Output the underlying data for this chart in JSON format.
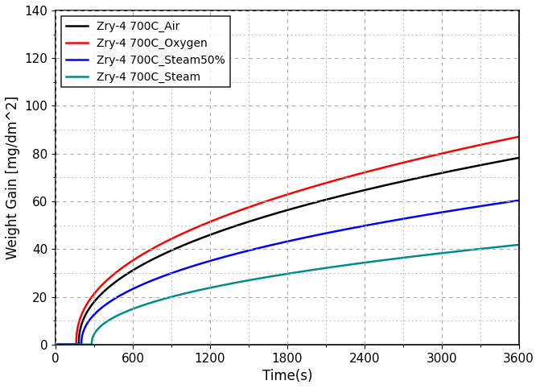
{
  "title": "",
  "xlabel": "Time(s)",
  "ylabel": "Weight Gain [mg/dm^2]",
  "xlim": [
    0,
    3600
  ],
  "ylim": [
    0,
    140
  ],
  "xticks": [
    0,
    600,
    1200,
    1800,
    2400,
    3000,
    3600
  ],
  "yticks": [
    0,
    20,
    40,
    60,
    80,
    100,
    120,
    140
  ],
  "series": [
    {
      "label": "Zry-4 700C_Air",
      "color": "#000000",
      "linewidth": 1.8,
      "coeff": 2.18,
      "exponent": 0.44,
      "t0": 180
    },
    {
      "label": "Zry-4 700C_Oxygen",
      "color": "#ff0000",
      "linewidth": 1.8,
      "coeff": 2.42,
      "exponent": 0.44,
      "t0": 160
    },
    {
      "label": "Zry-4 700C_Steam50%",
      "color": "#0000ff",
      "linewidth": 1.8,
      "coeff": 1.62,
      "exponent": 0.445,
      "t0": 200
    },
    {
      "label": "Zry-4 700C_Steam",
      "color": "#008B8B",
      "linewidth": 1.8,
      "coeff": 1.18,
      "exponent": 0.44,
      "t0": 280
    }
  ],
  "grid_color": "#aaaaaa",
  "grid_style": "--",
  "background_color": "#ffffff",
  "legend_fontsize": 10,
  "axis_fontsize": 12,
  "tick_fontsize": 11
}
